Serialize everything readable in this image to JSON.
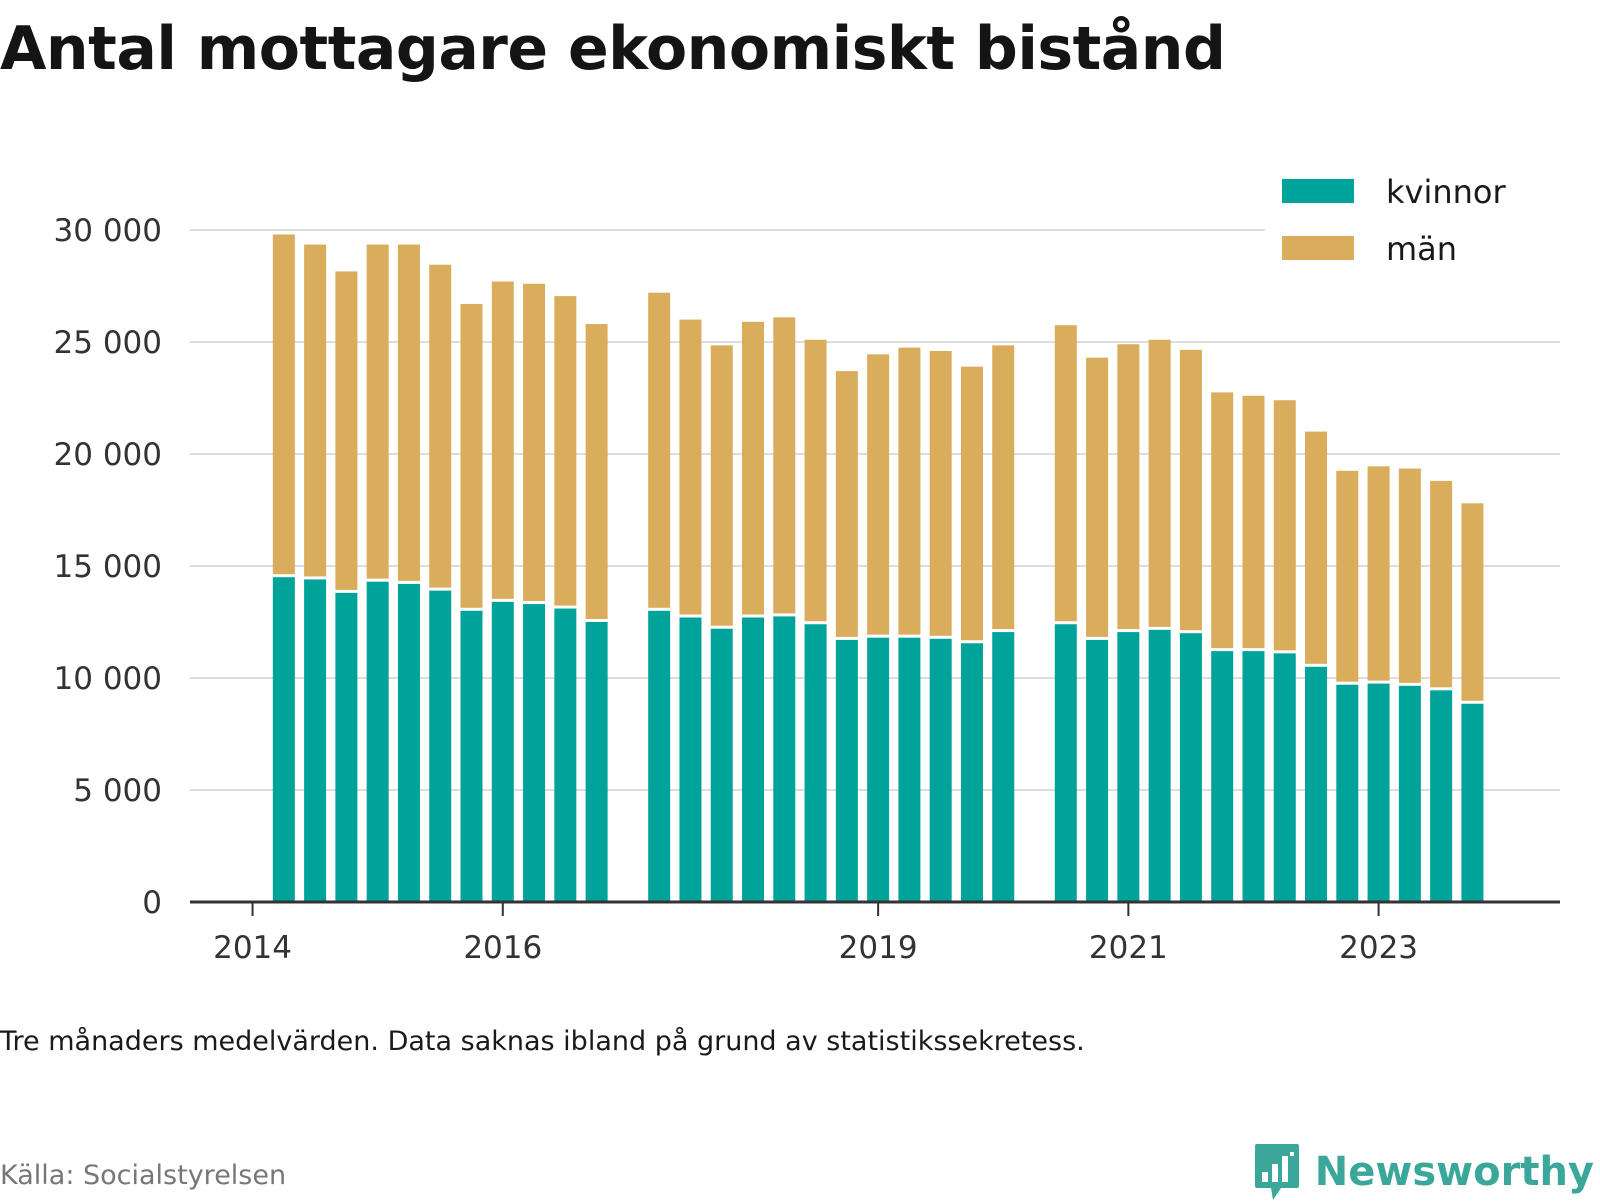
{
  "title": "Antal mottagare ekonomiskt bistånd",
  "note": "Tre månaders medelvärden. Data saknas ibland på grund av statistikssekretess.",
  "source": "Källa: Socialstyrelsen",
  "brand": {
    "name": "Newsworthy",
    "icon": "newsworthy-logo-icon"
  },
  "colors": {
    "kvinnor": "#00a39a",
    "man": "#d9ad5b",
    "grid": "#dddddd",
    "axis": "#333333"
  },
  "chart_data": {
    "type": "bar",
    "stacked": true,
    "y_ticks": [
      "0",
      "5 000",
      "10 000",
      "15 000",
      "20 000",
      "25 000",
      "30 000"
    ],
    "y_tick_values": [
      0,
      5000,
      10000,
      15000,
      20000,
      25000,
      30000
    ],
    "ylim": [
      0,
      30000
    ],
    "x_ticks": [
      "2014",
      "2016",
      "2019",
      "2021",
      "2023"
    ],
    "x_tick_positions": [
      2014.0,
      2016.0,
      2019.0,
      2021.0,
      2023.0
    ],
    "xlim": [
      2013.5,
      2024.45
    ],
    "legend": {
      "position": "top-right",
      "entries": [
        "kvinnor",
        "män"
      ]
    },
    "grid": true,
    "series": [
      {
        "name": "kvinnor",
        "color": "#00a39a",
        "values": [
          14500,
          14400,
          13800,
          14300,
          14200,
          13900,
          13000,
          13400,
          13300,
          13100,
          12500,
          13000,
          12700,
          12200,
          12700,
          12750,
          12400,
          11700,
          11800,
          11800,
          11750,
          11550,
          12050,
          12400,
          11700,
          12050,
          12150,
          12000,
          11200,
          11200,
          11100,
          10500,
          9700,
          9750,
          9650,
          9450,
          8850
        ]
      },
      {
        "name": "män",
        "color": "#d9ad5b",
        "values": [
          15300,
          14950,
          14350,
          15050,
          15150,
          14550,
          13700,
          14300,
          14300,
          13950,
          13300,
          14200,
          13300,
          12650,
          13200,
          13350,
          12700,
          12000,
          12650,
          12950,
          12850,
          12350,
          12800,
          13350,
          12600,
          12850,
          12950,
          12650,
          11550,
          11400,
          11300,
          10500,
          9550,
          9700,
          9700,
          9350,
          8950
        ]
      }
    ],
    "x": [
      2014.25,
      2014.5,
      2014.75,
      2015.0,
      2015.25,
      2015.5,
      2015.75,
      2016.0,
      2016.25,
      2016.5,
      2016.75,
      2017.25,
      2017.5,
      2017.75,
      2018.0,
      2018.25,
      2018.5,
      2018.75,
      2019.0,
      2019.25,
      2019.5,
      2019.75,
      2020.0,
      2020.5,
      2020.75,
      2021.0,
      2021.25,
      2021.5,
      2021.75,
      2022.0,
      2022.25,
      2022.5,
      2022.75,
      2023.0,
      2023.25,
      2023.5,
      2023.75
    ]
  }
}
